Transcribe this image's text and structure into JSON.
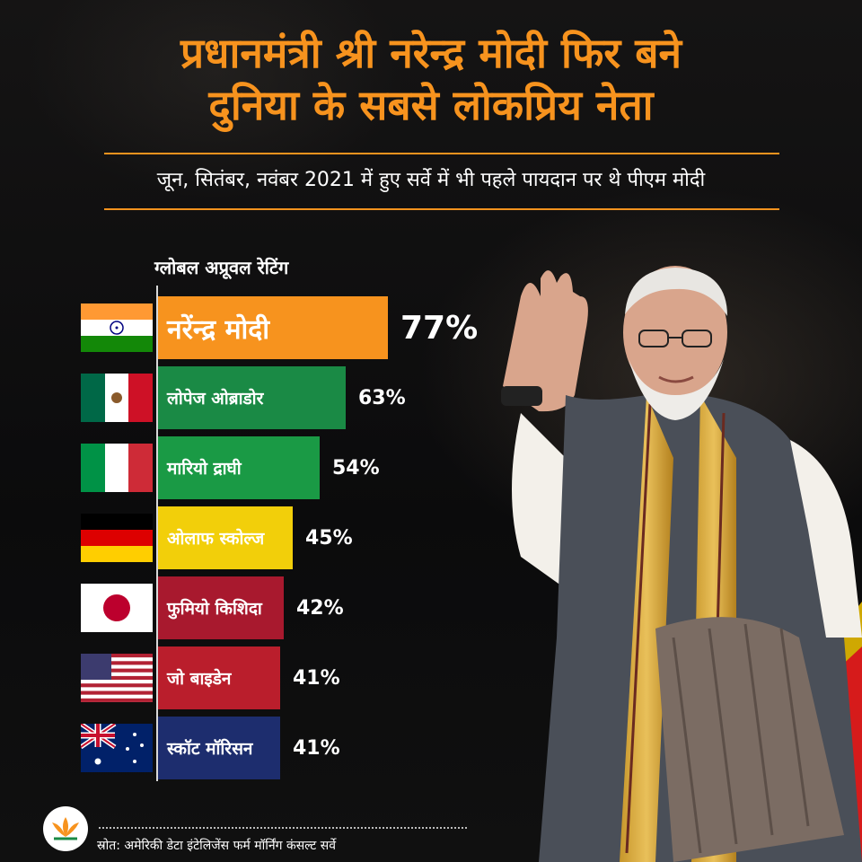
{
  "header": {
    "title_line1": "प्रधानमंत्री श्री नरेन्द्र मोदी फिर बने",
    "title_line2": "दुनिया के सबसे लोकप्रिय नेता",
    "subtitle": "जून, सितंबर, नवंबर 2021 में हुए सर्वे में भी पहले पायदान पर थे पीएम मोदी"
  },
  "chart_data": {
    "type": "bar",
    "orientation": "horizontal",
    "title": "ग्लोबल अप्रूवल रेटिंग",
    "categories": [
      "नरेंन्द्र मोदी",
      "लोपेज ओब्राडोर",
      "मारियो द्राघी",
      "ओलाफ स्कोल्ज",
      "फुमियो किशिदा",
      "जो बाइडेन",
      "स्कॉट मॉरिसन"
    ],
    "values": [
      77,
      63,
      54,
      45,
      42,
      41,
      41
    ],
    "value_labels": [
      "77%",
      "63%",
      "54%",
      "45%",
      "42%",
      "41%",
      "41%"
    ],
    "unit": "%",
    "flags": [
      "india-flag-icon",
      "mexico-flag-icon",
      "italy-flag-icon",
      "germany-flag-icon",
      "japan-flag-icon",
      "usa-flag-icon",
      "australia-flag-icon"
    ],
    "bar_colors": [
      "#f7931e",
      "#1a8a45",
      "#1a9a45",
      "#f2cf0a",
      "#a8192e",
      "#ba1e2c",
      "#1d2d6e"
    ],
    "label_colors": [
      "#ffffff",
      "#ffffff",
      "#ffffff",
      "#ffffff",
      "#ffffff",
      "#ffffff",
      "#ffffff"
    ],
    "grid": false,
    "legend": "none"
  },
  "footer": {
    "logo": "lotus-logo-icon",
    "source": "स्रोत: अमेरिकी डेटा इंटेलिजेंस फर्म मॉर्निंग कंसल्ट सर्वे"
  },
  "colors": {
    "accent": "#f7931e",
    "background": "#0b0b0c"
  }
}
